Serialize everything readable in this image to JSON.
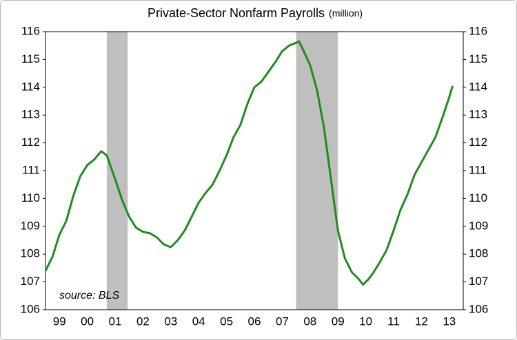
{
  "chart_data": {
    "type": "line",
    "title": "Private-Sector Nonfarm Payrolls",
    "title_unit": "(million)",
    "annotation": "source: BLS",
    "x": [
      1999.0,
      1999.25,
      1999.5,
      1999.75,
      2000.0,
      2000.25,
      2000.5,
      2000.75,
      2001.0,
      2001.2,
      2001.5,
      2001.75,
      2002.0,
      2002.25,
      2002.5,
      2002.75,
      2003.0,
      2003.25,
      2003.5,
      2003.75,
      2004.0,
      2004.25,
      2004.5,
      2004.75,
      2005.0,
      2005.25,
      2005.5,
      2005.75,
      2006.0,
      2006.25,
      2006.5,
      2006.75,
      2007.0,
      2007.25,
      2007.5,
      2007.75,
      2008.0,
      2008.1,
      2008.25,
      2008.5,
      2008.75,
      2009.0,
      2009.25,
      2009.5,
      2009.75,
      2010.0,
      2010.25,
      2010.4,
      2010.6,
      2010.75,
      2011.0,
      2011.25,
      2011.5,
      2011.75,
      2012.0,
      2012.25,
      2012.5,
      2012.75,
      2013.0,
      2013.25,
      2013.5,
      2013.62
    ],
    "series": [
      {
        "name": "Private-Sector Nonfarm Payrolls",
        "color": "#1e8c1e",
        "values": [
          107.4,
          107.9,
          108.7,
          109.2,
          110.1,
          110.8,
          111.2,
          111.4,
          111.7,
          111.55,
          110.7,
          109.95,
          109.35,
          108.95,
          108.8,
          108.75,
          108.6,
          108.35,
          108.25,
          108.5,
          108.85,
          109.35,
          109.85,
          110.2,
          110.5,
          111.0,
          111.55,
          112.2,
          112.65,
          113.4,
          114.0,
          114.2,
          114.55,
          114.9,
          115.3,
          115.5,
          115.6,
          115.65,
          115.35,
          114.8,
          113.9,
          112.55,
          110.7,
          108.85,
          107.85,
          107.35,
          107.1,
          106.9,
          107.1,
          107.3,
          107.7,
          108.15,
          108.85,
          109.6,
          110.15,
          110.85,
          111.3,
          111.75,
          112.2,
          112.9,
          113.65,
          114.05
        ]
      }
    ],
    "recessions": [
      [
        2001.2,
        2001.95
      ],
      [
        2008.0,
        2009.5
      ]
    ],
    "recession_color": "#bfbfbf",
    "xlim": [
      1999.0,
      2014.0
    ],
    "xticks": [
      {
        "value": 1999.5,
        "label": "99"
      },
      {
        "value": 2000.5,
        "label": "00"
      },
      {
        "value": 2001.5,
        "label": "01"
      },
      {
        "value": 2002.5,
        "label": "02"
      },
      {
        "value": 2003.5,
        "label": "03"
      },
      {
        "value": 2004.5,
        "label": "04"
      },
      {
        "value": 2005.5,
        "label": "05"
      },
      {
        "value": 2006.5,
        "label": "06"
      },
      {
        "value": 2007.5,
        "label": "07"
      },
      {
        "value": 2008.5,
        "label": "08"
      },
      {
        "value": 2009.5,
        "label": "09"
      },
      {
        "value": 2010.5,
        "label": "10"
      },
      {
        "value": 2011.5,
        "label": "11"
      },
      {
        "value": 2012.5,
        "label": "12"
      },
      {
        "value": 2013.5,
        "label": "13"
      }
    ],
    "ylim": [
      106,
      116
    ],
    "yticks": [
      106,
      107,
      108,
      109,
      110,
      111,
      112,
      113,
      114,
      115,
      116
    ],
    "y2lim": [
      106,
      116
    ],
    "y2ticks": [
      106,
      107,
      108,
      109,
      110,
      111,
      112,
      113,
      114,
      115,
      116
    ]
  }
}
